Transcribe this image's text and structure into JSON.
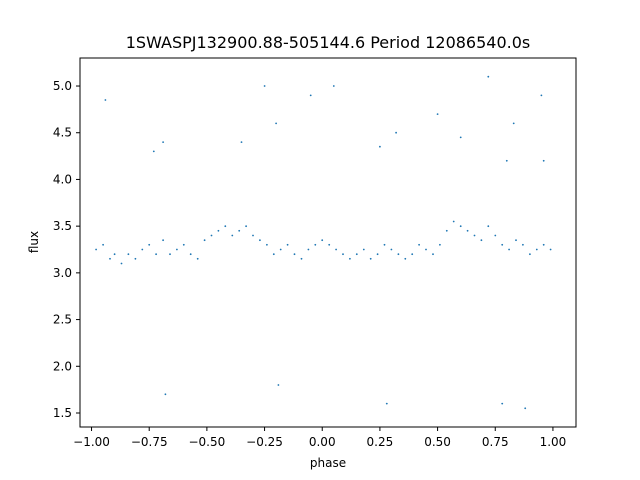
{
  "chart_data": {
    "type": "scatter",
    "title": "1SWASPJ132900.88-505144.6 Period 12086540.0s",
    "xlabel": "phase",
    "ylabel": "flux",
    "xlim": [
      -1.05,
      1.1
    ],
    "ylim": [
      1.35,
      5.3
    ],
    "xticks": [
      -1.0,
      -0.75,
      -0.5,
      -0.25,
      0.0,
      0.25,
      0.5,
      0.75,
      1.0
    ],
    "xtick_labels": [
      "−1.00",
      "−0.75",
      "−0.50",
      "−0.25",
      "0.00",
      "0.25",
      "0.50",
      "0.75",
      "1.00"
    ],
    "yticks": [
      1.5,
      2.0,
      2.5,
      3.0,
      3.5,
      4.0,
      4.5,
      5.0
    ],
    "ytick_labels": [
      "1.5",
      "2.0",
      "2.5",
      "3.0",
      "3.5",
      "4.0",
      "4.5",
      "5.0"
    ],
    "grid": false,
    "marker_color": "#1f77b4",
    "series": [
      {
        "x": [
          -0.98,
          -0.95,
          -0.92,
          -0.9,
          -0.87,
          -0.84,
          -0.81,
          -0.78,
          -0.75,
          -0.72,
          -0.69,
          -0.66,
          -0.63,
          -0.6,
          -0.57,
          -0.54,
          -0.51,
          -0.48,
          -0.45,
          -0.42,
          -0.39,
          -0.36,
          -0.33,
          -0.3,
          -0.27,
          -0.24,
          -0.21,
          -0.18,
          -0.15,
          -0.12,
          -0.09,
          -0.06,
          -0.03,
          0.0,
          0.03,
          0.06,
          0.09,
          0.12,
          0.15,
          0.18,
          0.21,
          0.24,
          0.27,
          0.3,
          0.33,
          0.36,
          0.39,
          0.42,
          0.45,
          0.48,
          0.51,
          0.54,
          0.57,
          0.6,
          0.63,
          0.66,
          0.69,
          0.72,
          0.75,
          0.78,
          0.81,
          0.84,
          0.87,
          0.9,
          0.93,
          0.96,
          0.99,
          -0.94,
          -0.73,
          -0.69,
          -0.35,
          -0.25,
          -0.2,
          -0.05,
          0.05,
          0.25,
          0.32,
          0.5,
          0.6,
          0.72,
          0.8,
          0.83,
          0.95,
          0.96,
          -0.68,
          -0.19,
          0.28,
          0.78,
          0.88
        ],
        "y": [
          3.25,
          3.3,
          3.15,
          3.2,
          3.1,
          3.2,
          3.15,
          3.25,
          3.3,
          3.2,
          3.35,
          3.2,
          3.25,
          3.3,
          3.2,
          3.15,
          3.35,
          3.4,
          3.45,
          3.5,
          3.4,
          3.45,
          3.5,
          3.4,
          3.35,
          3.3,
          3.2,
          3.25,
          3.3,
          3.2,
          3.15,
          3.25,
          3.3,
          3.35,
          3.3,
          3.25,
          3.2,
          3.15,
          3.2,
          3.25,
          3.15,
          3.2,
          3.3,
          3.25,
          3.2,
          3.15,
          3.2,
          3.3,
          3.25,
          3.2,
          3.3,
          3.45,
          3.55,
          3.5,
          3.45,
          3.4,
          3.35,
          3.5,
          3.4,
          3.3,
          3.25,
          3.35,
          3.3,
          3.2,
          3.25,
          3.3,
          3.25,
          4.85,
          4.3,
          4.4,
          4.4,
          5.0,
          4.6,
          4.9,
          5.0,
          4.35,
          4.5,
          4.7,
          4.45,
          5.1,
          4.2,
          4.6,
          4.9,
          4.2,
          1.7,
          1.8,
          1.6,
          1.6,
          1.55
        ]
      }
    ]
  }
}
